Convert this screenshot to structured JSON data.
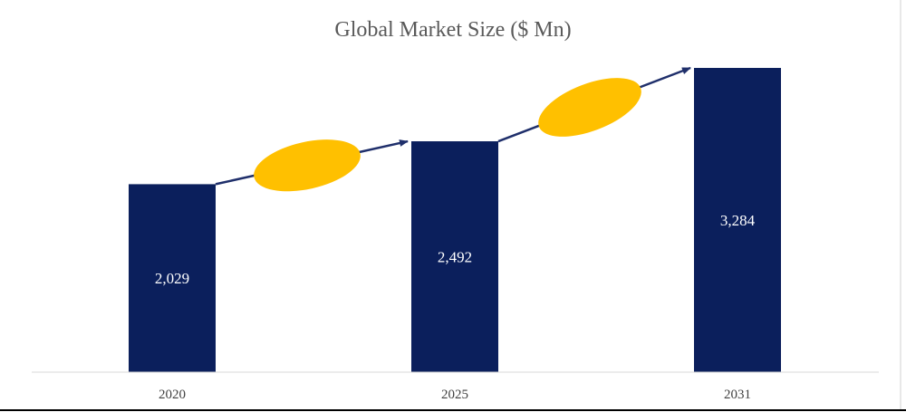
{
  "chart_data": {
    "type": "bar",
    "title": "Global Market Size ($ Mn)",
    "categories": [
      "2020",
      "2025",
      "2031"
    ],
    "values": [
      2029,
      2492,
      3284
    ],
    "data_labels": [
      "2,029",
      "2,492",
      "3,284"
    ],
    "xlabel": "",
    "ylabel": "",
    "ylim": [
      0,
      3284
    ],
    "grid": false,
    "legend": "none",
    "colors": {
      "bar": "#0B1F5C",
      "growth_marker": "#FFC000",
      "arrow": "#1F2F6B",
      "bar_label": "#FFFFFF",
      "title": "#595959"
    }
  }
}
